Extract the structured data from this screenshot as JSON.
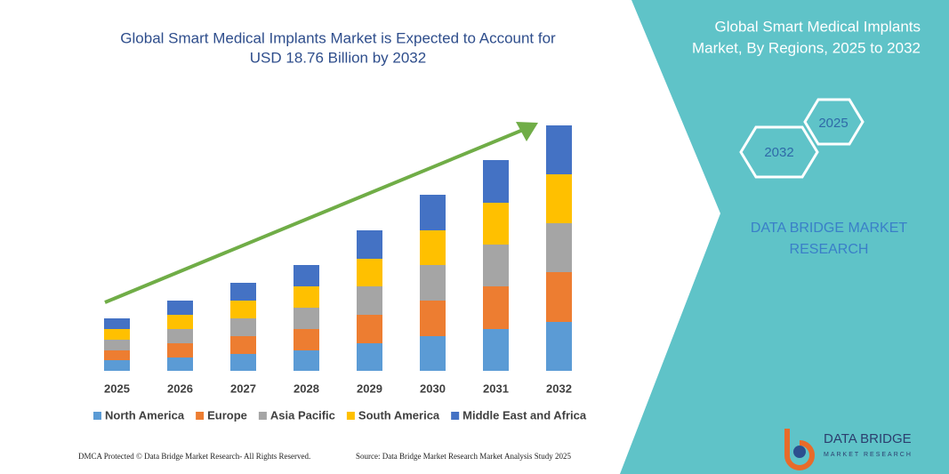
{
  "chart_data": {
    "type": "bar",
    "stacked": true,
    "title": [
      "Global Smart Medical Implants Market is Expected to Account for",
      "USD 18.76 Billion by 2032"
    ],
    "categories": [
      "2025",
      "2026",
      "2027",
      "2028",
      "2029",
      "2030",
      "2031",
      "2032"
    ],
    "series": [
      {
        "name": "North America",
        "color": "#5b9bd5",
        "values": [
          12,
          15,
          19,
          23,
          31,
          39,
          47,
          55
        ]
      },
      {
        "name": "Europe",
        "color": "#ed7d31",
        "values": [
          11,
          16,
          20,
          24,
          32,
          40,
          48,
          56
        ]
      },
      {
        "name": "Asia Pacific",
        "color": "#a5a5a5",
        "values": [
          12,
          16,
          20,
          24,
          32,
          40,
          47,
          55
        ]
      },
      {
        "name": "South America",
        "color": "#ffc000",
        "values": [
          12,
          16,
          20,
          24,
          31,
          39,
          47,
          55
        ]
      },
      {
        "name": "Middle East and Africa",
        "color": "#4472c4",
        "values": [
          12,
          16,
          20,
          24,
          32,
          40,
          48,
          55
        ]
      }
    ],
    "ylim": [
      0,
      276
    ],
    "legend": "bottom",
    "trend_arrow_color": "#70ad47"
  },
  "panel": {
    "title": [
      "Global Smart Medical Implants",
      "Market, By Regions, 2025 to 2032"
    ],
    "hexagons": [
      "2025",
      "2032"
    ],
    "brand": [
      "DATA BRIDGE MARKET",
      "RESEARCH"
    ]
  },
  "footer": {
    "left": "DMCA Protected © Data Bridge Market Research- All Rights Reserved.",
    "right": "Source: Data Bridge Market Research Market Analysis Study 2025"
  },
  "logo": {
    "name": "DATA BRIDGE",
    "tagline": "MARKET RESEARCH"
  }
}
